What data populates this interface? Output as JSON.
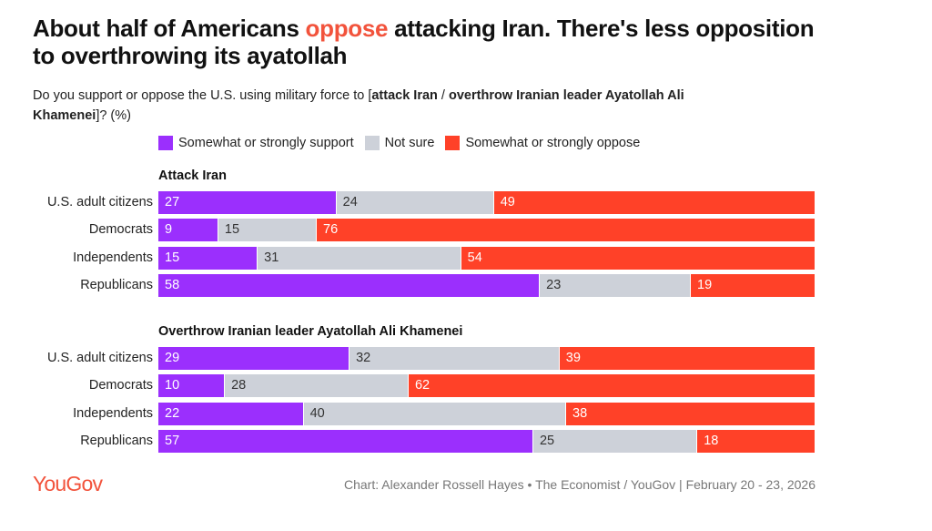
{
  "title": {
    "before": "About half of Americans ",
    "highlight": "oppose",
    "after": " attacking Iran. There's less opposition to overthrowing its ayatollah"
  },
  "subtitle": {
    "prefix": "Do you support or oppose the U.S. using military force to [",
    "bold1": "attack Iran",
    "sep": " / ",
    "bold2": "overthrow Iranian leader Ayatollah Ali Khamenei",
    "suffix": "]? (%)"
  },
  "colors": {
    "support": "#9b2ffd",
    "not_sure": "#cdd1d9",
    "oppose": "#ff4128",
    "highlight": "#f2533c"
  },
  "chart_data": {
    "type": "bar",
    "orientation": "horizontal-stacked-100",
    "title": "About half of Americans oppose attacking Iran. There's less opposition to overthrowing its ayatollah",
    "legend": [
      "Somewhat or strongly support",
      "Not sure",
      "Somewhat or strongly oppose"
    ],
    "legend_position": "top-left",
    "xlim": [
      0,
      100
    ],
    "unit": "%",
    "groups": [
      {
        "name": "Attack Iran",
        "categories": [
          "U.S. adult citizens",
          "Democrats",
          "Independents",
          "Republicans"
        ],
        "series": [
          {
            "name": "Somewhat or strongly support",
            "values": [
              27,
              9,
              15,
              58
            ]
          },
          {
            "name": "Not sure",
            "values": [
              24,
              15,
              31,
              23
            ]
          },
          {
            "name": "Somewhat or strongly oppose",
            "values": [
              49,
              76,
              54,
              19
            ]
          }
        ]
      },
      {
        "name": "Overthrow Iranian leader Ayatollah Ali Khamenei",
        "categories": [
          "U.S. adult citizens",
          "Democrats",
          "Independents",
          "Republicans"
        ],
        "series": [
          {
            "name": "Somewhat or strongly support",
            "values": [
              29,
              10,
              22,
              57
            ]
          },
          {
            "name": "Not sure",
            "values": [
              32,
              28,
              40,
              25
            ]
          },
          {
            "name": "Somewhat or strongly oppose",
            "values": [
              39,
              62,
              38,
              18
            ]
          }
        ]
      }
    ]
  },
  "footer": {
    "logo": "YouGov",
    "source": "Chart: Alexander Rossell Hayes • The Economist / YouGov | February 20 - 23, 2026"
  }
}
